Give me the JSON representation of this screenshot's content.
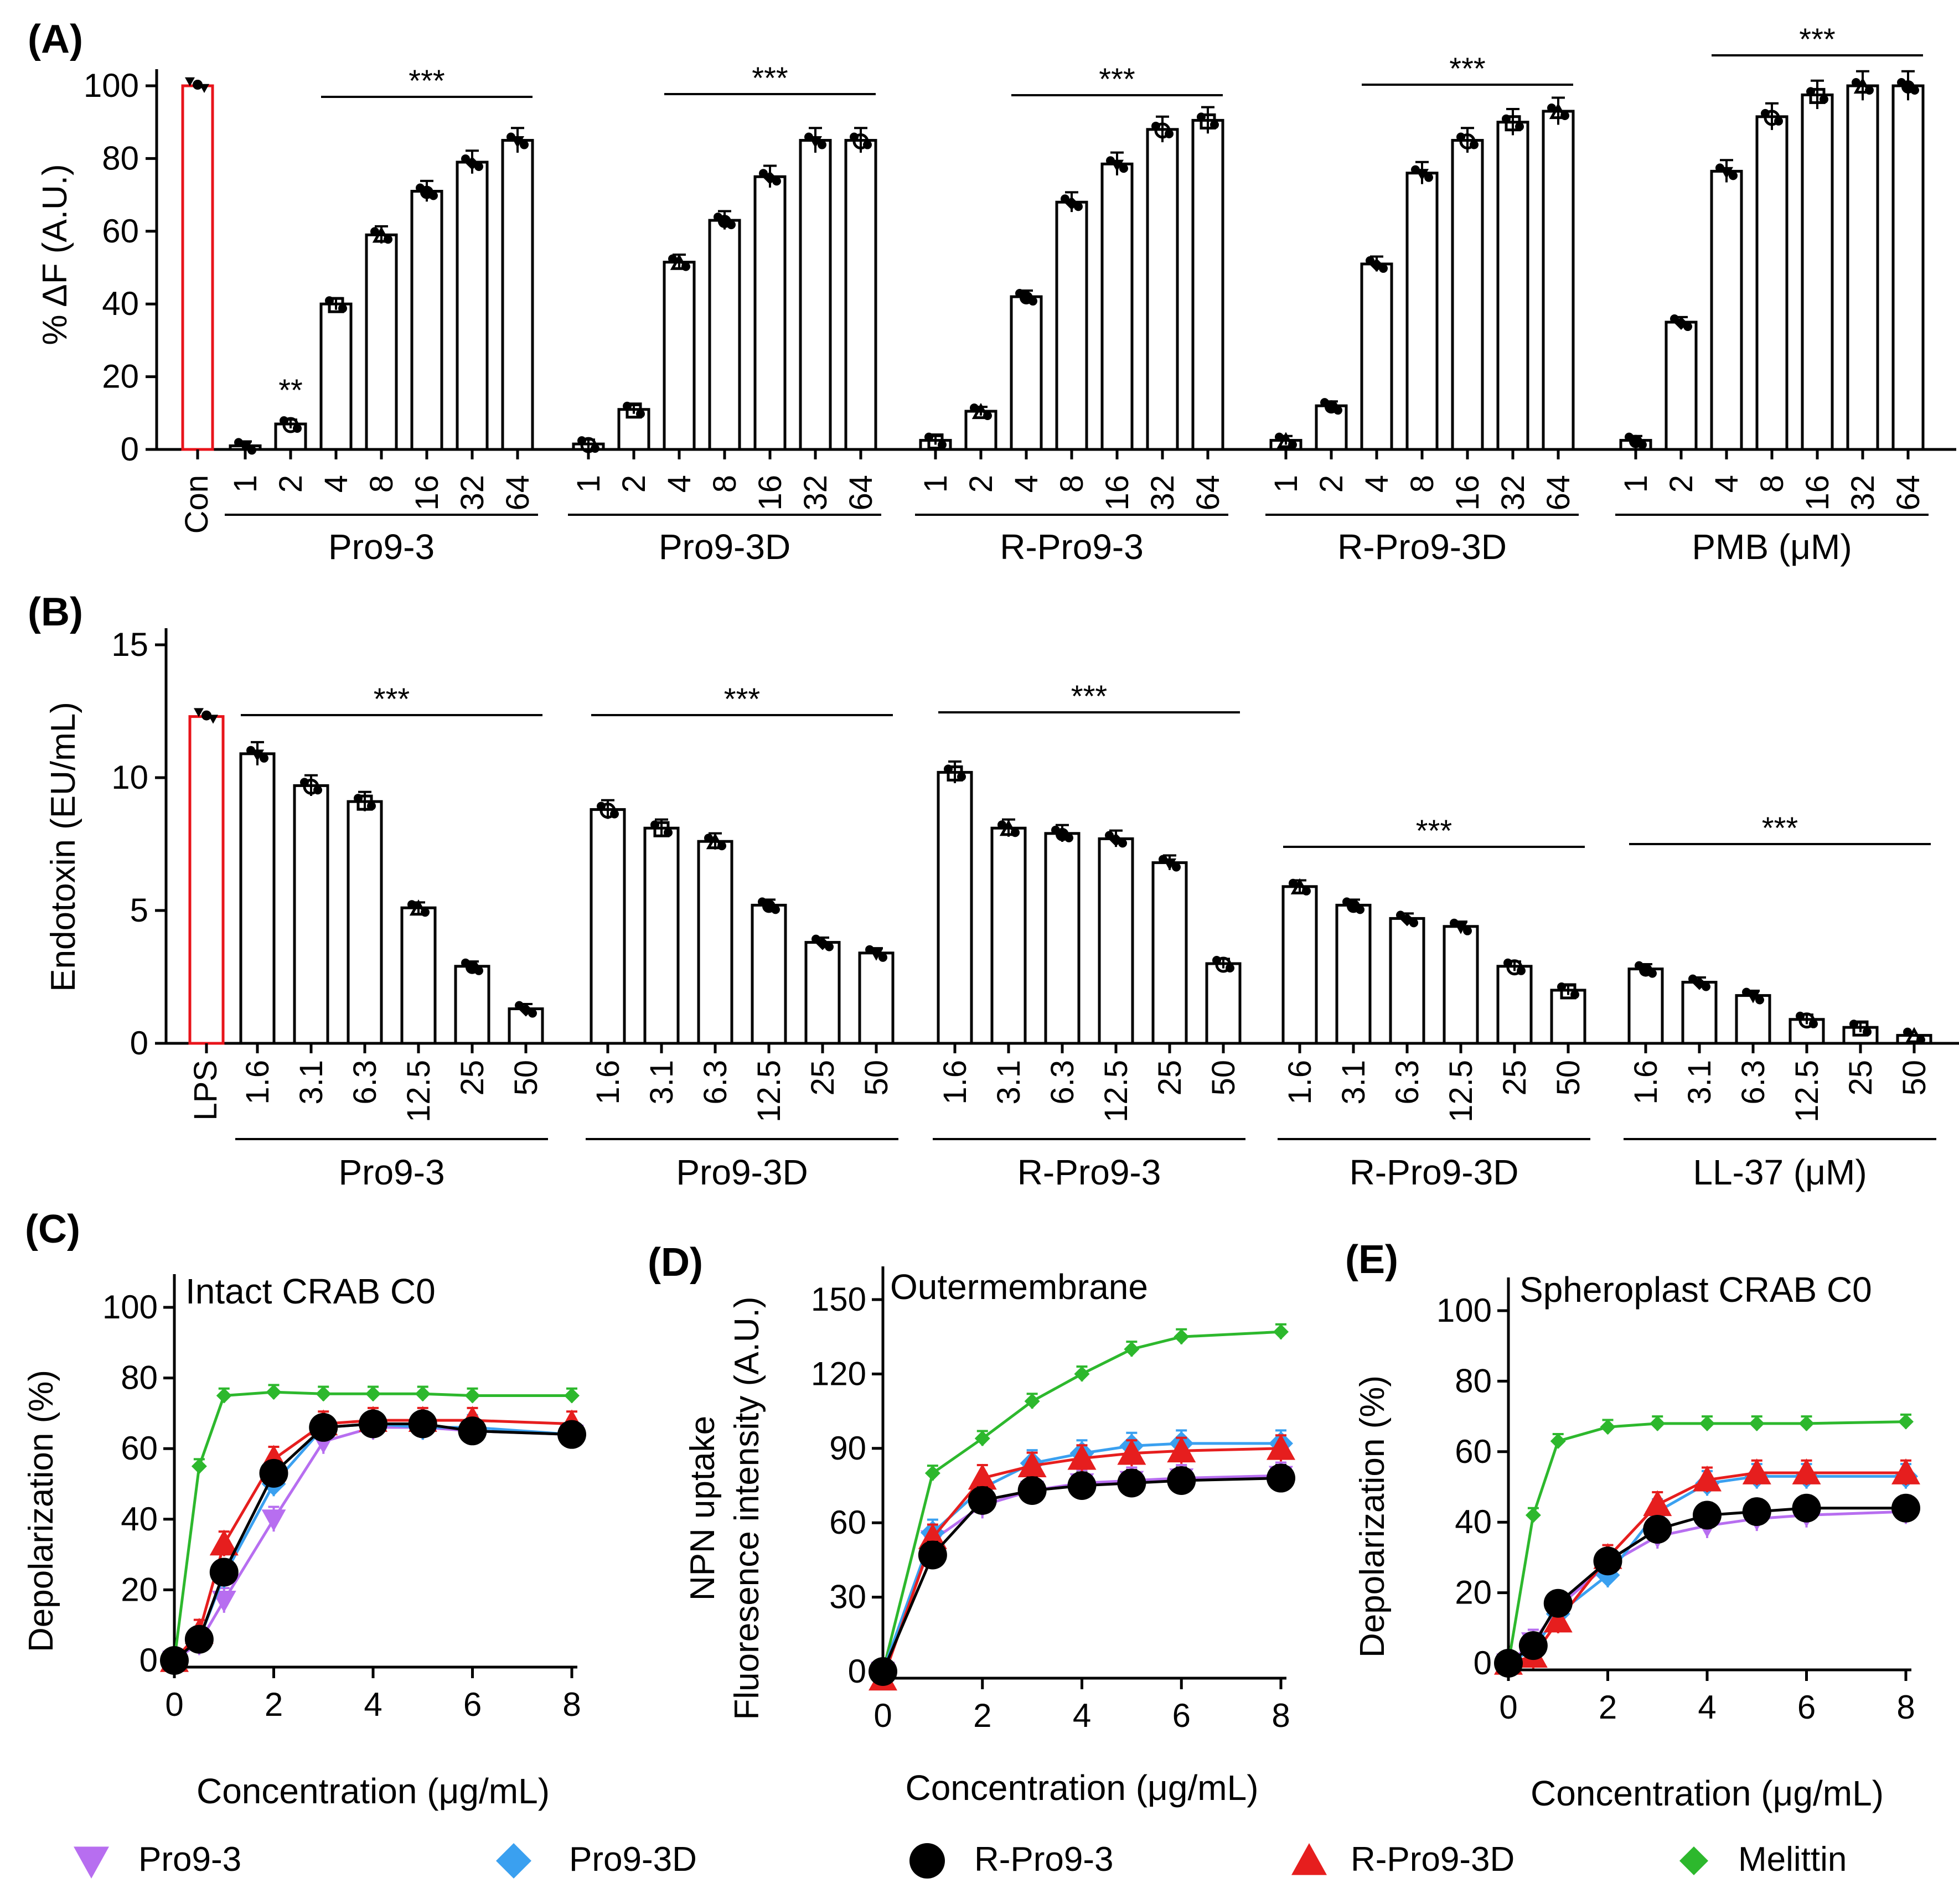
{
  "colors": {
    "control_bar": "#e8141b",
    "bar": "#000000",
    "Pro9-3": "#b76ef0",
    "Pro9-3D": "#3aa0f0",
    "R-Pro9-3": "#000000",
    "R-Pro9-3D": "#e61e1e",
    "Melittin": "#2db82d"
  },
  "chart_data": [
    {
      "id": "A",
      "type": "bar",
      "panel_label": "(A)",
      "ylabel": "% ΔF (A.U.)",
      "ylim": [
        0,
        100
      ],
      "yticks": [
        "0",
        "20",
        "40",
        "60",
        "80",
        "100"
      ],
      "control": {
        "label": "Con",
        "value": 100
      },
      "significance": [
        "**",
        "***"
      ],
      "groups": [
        {
          "name": "Pro9-3",
          "categories": [
            "1",
            "2",
            "4",
            "8",
            "16",
            "32",
            "64"
          ],
          "values": [
            1,
            7,
            40,
            59,
            71,
            79,
            85
          ],
          "sig": "***"
        },
        {
          "name": "Pro9-3D",
          "categories": [
            "1",
            "2",
            "4",
            "8",
            "16",
            "32",
            "64"
          ],
          "values": [
            1.5,
            11,
            51.5,
            63,
            75,
            85,
            85
          ],
          "sig": "***"
        },
        {
          "name": "R-Pro9-3",
          "categories": [
            "1",
            "2",
            "4",
            "8",
            "16",
            "32",
            "64"
          ],
          "values": [
            2.5,
            10.5,
            42,
            68,
            78.5,
            88,
            90.5
          ],
          "sig": "***"
        },
        {
          "name": "R-Pro9-3D",
          "categories": [
            "1",
            "2",
            "4",
            "8",
            "16",
            "32",
            "64"
          ],
          "values": [
            2.5,
            12,
            51,
            76,
            85,
            90,
            93
          ],
          "sig": "***"
        },
        {
          "name": "PMB (μM)",
          "categories": [
            "1",
            "2",
            "4",
            "8",
            "16",
            "32",
            "64"
          ],
          "values": [
            2.5,
            35,
            76.5,
            91.5,
            97.5,
            100,
            100
          ],
          "sig": "***"
        }
      ]
    },
    {
      "id": "B",
      "type": "bar",
      "panel_label": "(B)",
      "ylabel": "Endotoxin (EU/mL)",
      "ylim": [
        0,
        15
      ],
      "yticks": [
        "0",
        "5",
        "10",
        "15"
      ],
      "control": {
        "label": "LPS",
        "value": 12.3
      },
      "groups": [
        {
          "name": "Pro9-3",
          "categories": [
            "1.6",
            "3.1",
            "6.3",
            "12.5",
            "25",
            "50"
          ],
          "values": [
            10.9,
            9.7,
            9.1,
            5.1,
            2.9,
            1.3
          ],
          "sig": "***"
        },
        {
          "name": "Pro9-3D",
          "categories": [
            "1.6",
            "3.1",
            "6.3",
            "12.5",
            "25",
            "50"
          ],
          "values": [
            8.8,
            8.1,
            7.6,
            5.2,
            3.8,
            3.4
          ],
          "sig": "***"
        },
        {
          "name": "R-Pro9-3",
          "categories": [
            "1.6",
            "3.1",
            "6.3",
            "12.5",
            "25",
            "50"
          ],
          "values": [
            10.2,
            8.1,
            7.9,
            7.7,
            6.8,
            3.0
          ],
          "sig": "***"
        },
        {
          "name": "R-Pro9-3D",
          "categories": [
            "1.6",
            "3.1",
            "6.3",
            "12.5",
            "25",
            "50"
          ],
          "values": [
            5.9,
            5.2,
            4.7,
            4.4,
            2.9,
            2.0
          ],
          "sig": "***"
        },
        {
          "name": "LL-37 (μM)",
          "categories": [
            "1.6",
            "3.1",
            "6.3",
            "12.5",
            "25",
            "50"
          ],
          "values": [
            2.8,
            2.3,
            1.8,
            0.9,
            0.6,
            0.3
          ],
          "sig": "***"
        }
      ]
    },
    {
      "id": "C",
      "type": "line",
      "panel_label": "(C)",
      "title": "Intact CRAB C0",
      "xlabel": "Concentration (μg/mL)",
      "ylabel": "Depolarization (%)",
      "xlim": [
        0,
        8
      ],
      "ylim": [
        0,
        100
      ],
      "xticks": [
        "0",
        "2",
        "4",
        "6",
        "8"
      ],
      "yticks": [
        "0",
        "20",
        "40",
        "60",
        "80",
        "100"
      ],
      "x": [
        0,
        0.5,
        1,
        2,
        3,
        4,
        5,
        6,
        8
      ],
      "series": [
        {
          "name": "Melittin",
          "values": [
            0,
            55,
            75,
            76,
            75.5,
            75.5,
            75.5,
            75,
            75
          ]
        },
        {
          "name": "R-Pro9-3D",
          "values": [
            0,
            8,
            33,
            57,
            67,
            68,
            68,
            68,
            67
          ]
        },
        {
          "name": "Pro9-3D",
          "values": [
            0,
            6,
            24,
            50,
            66,
            67,
            66,
            66,
            64
          ]
        },
        {
          "name": "R-Pro9-3",
          "values": [
            0,
            6,
            25,
            53,
            66,
            67,
            67,
            65,
            64
          ]
        },
        {
          "name": "Pro9-3",
          "values": [
            0,
            5,
            17,
            40,
            62,
            66,
            66,
            65,
            64
          ]
        }
      ]
    },
    {
      "id": "D",
      "type": "line",
      "panel_label": "(D)",
      "title": "Outermembrane",
      "xlabel": "Concentration (μg/mL)",
      "ylabel_lines": [
        "NPN uptake",
        "Fluoresence intensity (A.U.)"
      ],
      "xlim": [
        0,
        8
      ],
      "ylim": [
        0,
        150
      ],
      "xticks": [
        "0",
        "2",
        "4",
        "6",
        "8"
      ],
      "yticks": [
        "0",
        "30",
        "60",
        "90",
        "120",
        "150"
      ],
      "x": [
        0,
        1,
        2,
        3,
        4,
        5,
        6,
        8
      ],
      "series": [
        {
          "name": "Melittin",
          "values": [
            0,
            80,
            94,
            109,
            120,
            130,
            135,
            137
          ]
        },
        {
          "name": "R-Pro9-3D",
          "values": [
            -3,
            54,
            78,
            83,
            86,
            88,
            89,
            90
          ]
        },
        {
          "name": "Pro9-3D",
          "values": [
            0,
            56,
            74,
            84,
            88,
            91,
            92,
            92
          ]
        },
        {
          "name": "R-Pro9-3",
          "values": [
            0,
            47,
            69,
            73,
            75,
            76,
            77,
            78
          ]
        },
        {
          "name": "Pro9-3",
          "values": [
            0,
            53,
            67,
            73,
            76,
            77,
            78,
            79
          ]
        }
      ]
    },
    {
      "id": "E",
      "type": "line",
      "panel_label": "(E)",
      "title": "Spheroplast CRAB C0",
      "xlabel": "Concentration (μg/mL)",
      "ylabel": "Depolarization (%)",
      "xlim": [
        0,
        8
      ],
      "ylim": [
        0,
        100
      ],
      "xticks": [
        "0",
        "2",
        "4",
        "6",
        "8"
      ],
      "yticks": [
        "0",
        "20",
        "40",
        "60",
        "80",
        "100"
      ],
      "x": [
        0,
        0.5,
        1,
        2,
        3,
        4,
        5,
        6,
        8
      ],
      "series": [
        {
          "name": "Melittin",
          "values": [
            0,
            42,
            63,
            67,
            68,
            68,
            68,
            68,
            68.5
          ]
        },
        {
          "name": "R-Pro9-3D",
          "values": [
            0,
            2,
            12,
            30,
            45,
            52,
            54,
            54,
            54
          ]
        },
        {
          "name": "Pro9-3D",
          "values": [
            0,
            4,
            14,
            25,
            43,
            51,
            53,
            53,
            53
          ]
        },
        {
          "name": "R-Pro9-3",
          "values": [
            0,
            5,
            17,
            29,
            38,
            42,
            43,
            44,
            44
          ]
        },
        {
          "name": "Pro9-3",
          "values": [
            0,
            6,
            16,
            28,
            36,
            39,
            41,
            42,
            43
          ]
        }
      ]
    }
  ],
  "legend": [
    "Pro9-3",
    "Pro9-3D",
    "R-Pro9-3",
    "R-Pro9-3D",
    "Melittin"
  ]
}
